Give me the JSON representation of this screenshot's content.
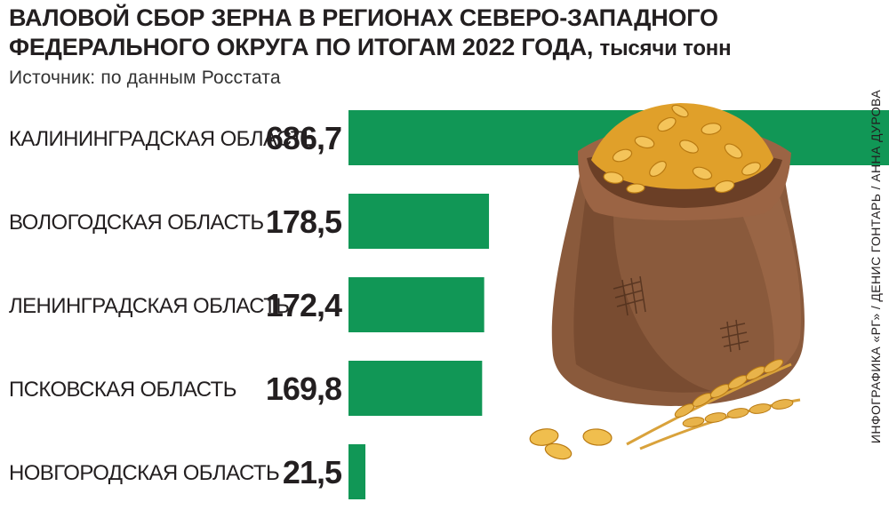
{
  "header": {
    "title_main": "ВАЛОВОЙ СБОР ЗЕРНА В РЕГИОНАХ СЕВЕРО-ЗАПАДНОГО ФЕДЕРАЛЬНОГО ОКРУГА ПО ИТОГАМ 2022 ГОДА,",
    "title_units": "тысячи тонн",
    "source": "Источник: по данным Росстата",
    "credit": "ИНФОГРАФИКА «РГ» / ДЕНИС ГОНТАРЬ / АННА ДУРОВА"
  },
  "colors": {
    "bar": "#119756",
    "text": "#231f20",
    "sack": "#8a5a3c",
    "grain": "#e8a92a"
  },
  "chart_data": {
    "type": "bar",
    "orientation": "horizontal",
    "categories": [
      "КАЛИНИНГРАДСКАЯ ОБЛАСТЬ",
      "ВОЛОГОДСКАЯ ОБЛАСТЬ",
      "ЛЕНИНГРАДСКАЯ ОБЛАСТЬ",
      "ПСКОВСКАЯ ОБЛАСТЬ",
      "НОВГОРОДСКАЯ ОБЛАСТЬ"
    ],
    "values": [
      686.7,
      178.5,
      172.4,
      169.8,
      21.5
    ],
    "value_labels": [
      "686,7",
      "178,5",
      "172,4",
      "169,8",
      "21,5"
    ],
    "xlim": [
      0,
      686.7
    ],
    "grid": false,
    "legend": "none"
  },
  "decoration": {
    "illustration": "grain-sack-icon"
  }
}
